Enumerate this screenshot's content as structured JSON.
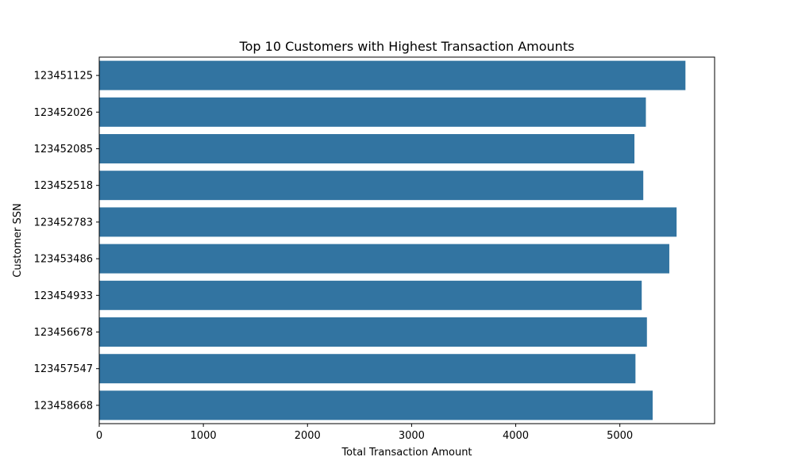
{
  "chart_data": {
    "type": "bar",
    "orientation": "horizontal",
    "title": "Top 10 Customers with Highest Transaction Amounts",
    "xlabel": "Total Transaction Amount",
    "ylabel": "Customer SSN",
    "categories": [
      "123451125",
      "123452026",
      "123452085",
      "123452518",
      "123452783",
      "123453486",
      "123454933",
      "123456678",
      "123457547",
      "123458668"
    ],
    "values": [
      5630,
      5250,
      5140,
      5225,
      5545,
      5475,
      5210,
      5260,
      5150,
      5315
    ],
    "xlim": [
      0,
      5910
    ],
    "xticks": [
      "0",
      "1000",
      "2000",
      "3000",
      "4000",
      "5000"
    ],
    "bar_color": "#3274a1",
    "grid": false
  }
}
